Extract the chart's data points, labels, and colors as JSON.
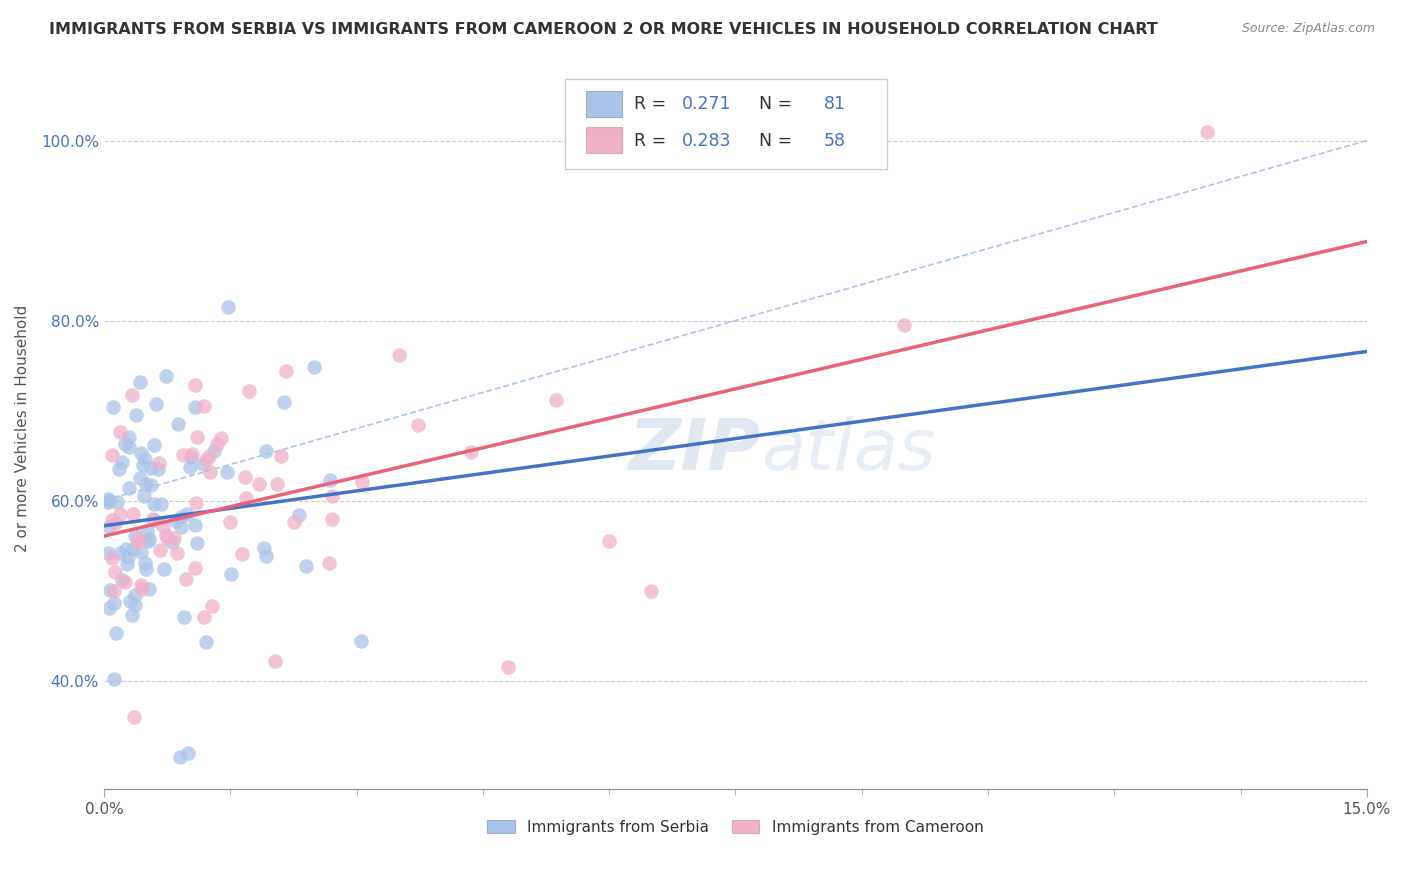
{
  "title": "IMMIGRANTS FROM SERBIA VS IMMIGRANTS FROM CAMEROON 2 OR MORE VEHICLES IN HOUSEHOLD CORRELATION CHART",
  "source": "Source: ZipAtlas.com",
  "ylabel": "2 or more Vehicles in Household",
  "serbia_R": 0.271,
  "serbia_N": 81,
  "cameroon_R": 0.283,
  "cameroon_N": 58,
  "serbia_color": "#aac4e8",
  "cameroon_color": "#f0b0c8",
  "serbia_line_color": "#4472c4",
  "cameroon_line_color": "#e8637a",
  "dashed_line_color": "#99b8d8",
  "background_color": "#ffffff",
  "y_tick_color": "#4472c4",
  "x_label_color": "#555555",
  "xlim": [
    0.0,
    0.15
  ],
  "ylim": [
    0.28,
    1.08
  ],
  "y_ticks": [
    0.4,
    0.6,
    0.8,
    1.0
  ],
  "y_tick_labels": [
    "40.0%",
    "60.0%",
    "80.0%",
    "100.0%"
  ]
}
